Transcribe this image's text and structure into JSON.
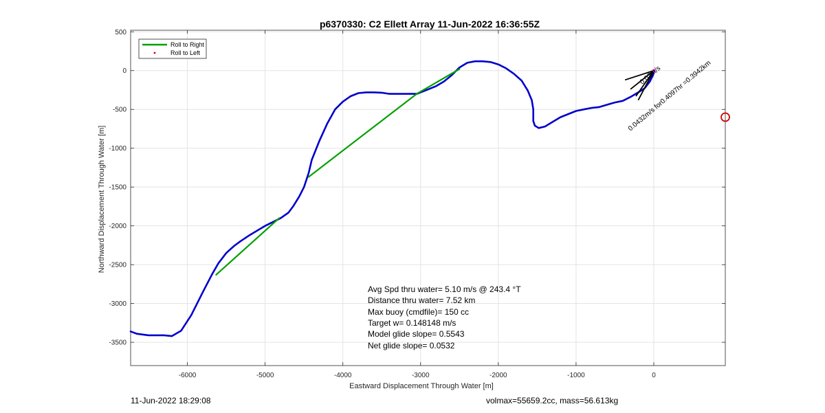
{
  "chart_data": {
    "type": "line",
    "title": "p6370330: C2 Ellett Array 11-Jun-2022 16:36:55Z",
    "xlabel": "Eastward Displacement Through Water [m]",
    "ylabel": "Northward Displacement Through Water [m]",
    "xlim": [
      -6730,
      920
    ],
    "ylim": [
      -3800,
      520
    ],
    "xticks": [
      -6000,
      -5000,
      -4000,
      -3000,
      -2000,
      -1000,
      0
    ],
    "yticks": [
      500,
      0,
      -500,
      -1000,
      -1500,
      -2000,
      -2500,
      -3000,
      -3500
    ],
    "grid": true,
    "legend": {
      "placement": "top-left",
      "entries": [
        {
          "label": "Roll to Right",
          "color": "#00a000",
          "marker": "line"
        },
        {
          "label": "Roll to Left",
          "color": "#d00000",
          "marker": "dot"
        }
      ]
    },
    "series": [
      {
        "color": "#0000cc",
        "x": [
          -6730,
          -6650,
          -6500,
          -6300,
          -6200,
          -6080,
          -5950,
          -5800,
          -5680,
          -5600,
          -5500,
          -5400,
          -5320,
          -5200,
          -5000,
          -4800,
          -4700,
          -4640,
          -4560,
          -4500,
          -4440,
          -4400,
          -4360,
          -4300,
          -4200,
          -4100,
          -4000,
          -3900,
          -3800,
          -3700,
          -3600,
          -3500,
          -3400,
          -3200,
          -3050,
          -3000,
          -2900,
          -2800,
          -2700,
          -2600,
          -2500,
          -2400,
          -2300,
          -2200,
          -2100,
          -2000,
          -1900,
          -1800,
          -1700,
          -1620,
          -1570,
          -1550,
          -1550,
          -1530,
          -1480,
          -1400,
          -1300,
          -1200,
          -1100,
          -1000,
          -900,
          -800,
          -700,
          -600,
          -500,
          -400,
          -300,
          -200,
          -120,
          -50,
          -10,
          5
        ],
        "y": [
          -3360,
          -3390,
          -3410,
          -3410,
          -3420,
          -3350,
          -3150,
          -2850,
          -2620,
          -2480,
          -2350,
          -2260,
          -2200,
          -2120,
          -2000,
          -1900,
          -1830,
          -1750,
          -1620,
          -1500,
          -1320,
          -1150,
          -1050,
          -900,
          -680,
          -500,
          -400,
          -330,
          -290,
          -280,
          -280,
          -285,
          -300,
          -300,
          -300,
          -280,
          -240,
          -200,
          -140,
          -60,
          40,
          100,
          120,
          120,
          110,
          80,
          30,
          -40,
          -130,
          -260,
          -380,
          -500,
          -650,
          -710,
          -740,
          -720,
          -660,
          -600,
          -560,
          -520,
          -500,
          -480,
          -470,
          -440,
          -410,
          -390,
          -340,
          -280,
          -230,
          -140,
          -60,
          -10
        ]
      },
      {
        "color": "#00a000",
        "x": [
          -5630,
          -4820
        ],
        "y": [
          -2630,
          -1900
        ]
      },
      {
        "color": "#00a000",
        "x": [
          -4440,
          -3050
        ],
        "y": [
          -1370,
          -300
        ]
      },
      {
        "color": "#00a000",
        "x": [
          -3050,
          -2500
        ],
        "y": [
          -300,
          20
        ]
      }
    ],
    "markers": [
      {
        "x": 920,
        "y": -600,
        "shape": "circle",
        "color": "#cc0000"
      }
    ],
    "vectors": [
      {
        "x0": 0,
        "y0": 0,
        "x1": -370,
        "y1": -120,
        "color": "#000000"
      },
      {
        "x0": 0,
        "y0": 0,
        "x1": -300,
        "y1": -240,
        "color": "#000000"
      },
      {
        "x0": 0,
        "y0": 0,
        "x1": -230,
        "y1": -330,
        "color": "#000000"
      },
      {
        "x0": 0,
        "y0": 0,
        "x1": -200,
        "y1": -380,
        "color": "#000000"
      }
    ],
    "vector_labels": [
      {
        "text": "0.0432m/s for0.4097hr =0.3942km",
        "x": -300,
        "y": -780,
        "angle": 40
      },
      {
        "text": "0.02m/s",
        "x": -150,
        "y": -180,
        "angle": 40
      }
    ],
    "stats": [
      "Avg Spd thru water=  5.10 m/s @ 243.4 °T",
      "Distance thru water=  7.52 km",
      "Max buoy (cmdfile)= 150 cc",
      "Target w= 0.148148 m/s",
      "Model glide slope= 0.5543",
      "Net glide slope= 0.0532"
    ]
  },
  "footer": {
    "left": "11-Jun-2022 18:29:08",
    "right": "volmax=55659.2cc, mass=56.613kg"
  }
}
